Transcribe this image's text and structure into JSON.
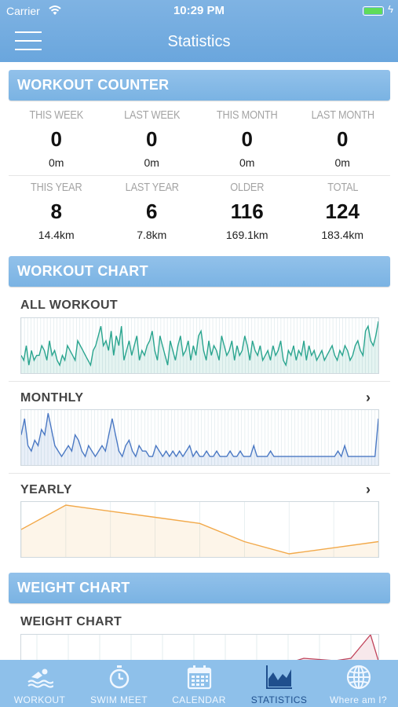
{
  "status_bar": {
    "carrier": "Carrier",
    "time": "10:29 PM"
  },
  "header": {
    "title": "Statistics",
    "menu_icon": "hamburger-menu-icon"
  },
  "workout_counter": {
    "section_title": "WORKOUT COUNTER",
    "rows": [
      [
        {
          "label": "THIS WEEK",
          "count": "0",
          "distance": "0m"
        },
        {
          "label": "LAST WEEK",
          "count": "0",
          "distance": "0m"
        },
        {
          "label": "THIS MONTH",
          "count": "0",
          "distance": "0m"
        },
        {
          "label": "LAST MONTH",
          "count": "0",
          "distance": "0m"
        }
      ],
      [
        {
          "label": "THIS YEAR",
          "count": "8",
          "distance": "14.4km"
        },
        {
          "label": "LAST YEAR",
          "count": "6",
          "distance": "7.8km"
        },
        {
          "label": "OLDER",
          "count": "116",
          "distance": "169.1km"
        },
        {
          "label": "TOTAL",
          "count": "124",
          "distance": "183.4km"
        }
      ]
    ]
  },
  "workout_chart": {
    "section_title": "WORKOUT CHART",
    "charts": [
      {
        "title": "ALL WORKOUT",
        "has_chevron": false,
        "color": "#2aa58f",
        "values": [
          3,
          2,
          5,
          1,
          4,
          2,
          3,
          3,
          5,
          4,
          2,
          6,
          3,
          4,
          2,
          1,
          3,
          2,
          5,
          4,
          3,
          2,
          6,
          5,
          4,
          3,
          2,
          1,
          4,
          5,
          7,
          9,
          5,
          6,
          4,
          8,
          3,
          7,
          5,
          9,
          2,
          4,
          6,
          3,
          5,
          7,
          2,
          4,
          3,
          5,
          6,
          8,
          4,
          2,
          7,
          5,
          3,
          1,
          6,
          4,
          2,
          5,
          7,
          3,
          4,
          6,
          2,
          5,
          3,
          7,
          8,
          4,
          2,
          6,
          3,
          5,
          4,
          2,
          7,
          5,
          3,
          4,
          6,
          2,
          5,
          3,
          4,
          7,
          5,
          2,
          6,
          4,
          3,
          5,
          2,
          3,
          4,
          2,
          5,
          3,
          4,
          6,
          2,
          1,
          4,
          3,
          5,
          2,
          4,
          3,
          6,
          2,
          5,
          3,
          4,
          2,
          3,
          4,
          2,
          3,
          4,
          5,
          3,
          2,
          4,
          3,
          5,
          4,
          2,
          3,
          5,
          6,
          4,
          3,
          8,
          9,
          6,
          5,
          7,
          10
        ]
      },
      {
        "title": "MONTHLY",
        "has_chevron": true,
        "color": "#4b79c4",
        "values": [
          5,
          8,
          3,
          2,
          4,
          3,
          6,
          5,
          9,
          6,
          3,
          2,
          1,
          2,
          3,
          2,
          5,
          4,
          2,
          1,
          3,
          2,
          1,
          2,
          3,
          2,
          5,
          8,
          5,
          2,
          1,
          3,
          4,
          2,
          1,
          3,
          2,
          2,
          1,
          1,
          3,
          2,
          1,
          2,
          1,
          2,
          1,
          2,
          1,
          2,
          3,
          1,
          2,
          1,
          1,
          2,
          1,
          1,
          2,
          1,
          1,
          1,
          2,
          1,
          1,
          2,
          1,
          1,
          1,
          3,
          1,
          1,
          1,
          1,
          2,
          1,
          1,
          1,
          1,
          1,
          1,
          1,
          1,
          1,
          1,
          1,
          1,
          1,
          1,
          1,
          1,
          1,
          1,
          1,
          2,
          1,
          3,
          1,
          1,
          1,
          1,
          1,
          1,
          1,
          1,
          1,
          8
        ]
      },
      {
        "title": "YEARLY",
        "has_chevron": true,
        "color": "#f2a94a",
        "values": [
          4,
          8,
          7,
          6,
          5,
          2,
          0,
          1,
          2
        ]
      }
    ]
  },
  "weight_chart": {
    "section_title": "WEIGHT CHART",
    "chart_title": "WEIGHT CHART"
  },
  "tabbar": {
    "tabs": [
      {
        "label": "WORKOUT",
        "icon": "swimmer-icon",
        "active": false
      },
      {
        "label": "SWIM MEET",
        "icon": "stopwatch-icon",
        "active": false
      },
      {
        "label": "CALENDAR",
        "icon": "calendar-icon",
        "active": false
      },
      {
        "label": "STATISTICS",
        "icon": "area-chart-icon",
        "active": true
      },
      {
        "label": "Where am I?",
        "icon": "globe-icon",
        "active": false
      }
    ]
  }
}
